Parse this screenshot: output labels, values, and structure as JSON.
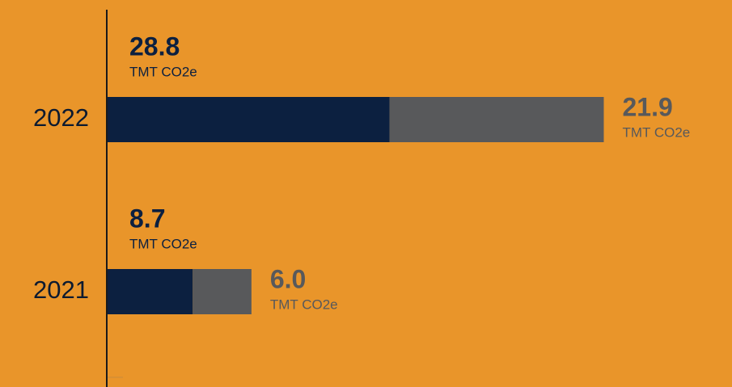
{
  "chart_data": {
    "type": "stacked-bar-horizontal",
    "categories": [
      "2022",
      "2021"
    ],
    "unit": "TMT CO2e",
    "series": [
      {
        "color": "#0c2040",
        "values": [
          28.8,
          8.7
        ],
        "value_labels": [
          "28.8",
          "8.7"
        ]
      },
      {
        "color": "#58595b",
        "values": [
          21.9,
          6.0
        ],
        "value_labels": [
          "21.9",
          "6.0"
        ]
      }
    ]
  }
}
